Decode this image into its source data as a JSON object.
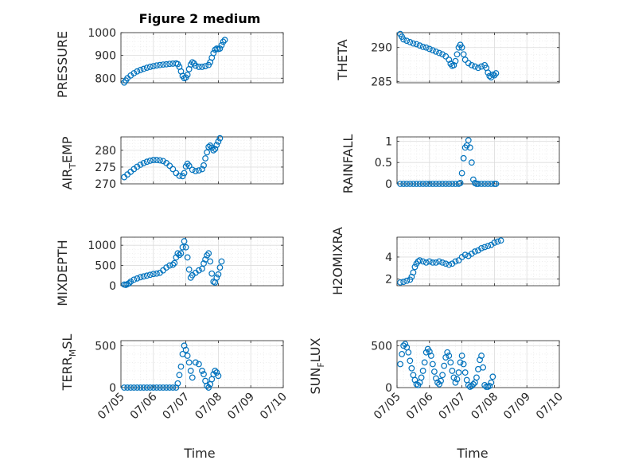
{
  "figure": {
    "title": "Figure 2 medium"
  },
  "colors": {
    "marker": "#0072BD"
  },
  "x_ticks": [
    "07/05",
    "07/06",
    "07/07",
    "07/08",
    "07/09",
    "07/10"
  ],
  "x_domain_days": [
    5,
    10
  ],
  "chart_data": [
    {
      "type": "scatter",
      "ylabel": "PRESSURE",
      "ylim": [
        780,
        1000
      ],
      "yticks": [
        800,
        900,
        1000
      ],
      "grid": true,
      "minor_grid": true,
      "points": [
        [
          5.1,
          781
        ],
        [
          5.15,
          790
        ],
        [
          5.2,
          800
        ],
        [
          5.3,
          812
        ],
        [
          5.4,
          822
        ],
        [
          5.5,
          830
        ],
        [
          5.6,
          836
        ],
        [
          5.7,
          841
        ],
        [
          5.8,
          846
        ],
        [
          5.9,
          850
        ],
        [
          6.0,
          853
        ],
        [
          6.1,
          856
        ],
        [
          6.2,
          858
        ],
        [
          6.3,
          860
        ],
        [
          6.4,
          861
        ],
        [
          6.5,
          863
        ],
        [
          6.6,
          864
        ],
        [
          6.7,
          865
        ],
        [
          6.75,
          862
        ],
        [
          6.8,
          850
        ],
        [
          6.85,
          830
        ],
        [
          6.9,
          810
        ],
        [
          6.95,
          800
        ],
        [
          7.0,
          803
        ],
        [
          7.05,
          815
        ],
        [
          7.1,
          840
        ],
        [
          7.15,
          860
        ],
        [
          7.2,
          870
        ],
        [
          7.25,
          865
        ],
        [
          7.3,
          855
        ],
        [
          7.4,
          850
        ],
        [
          7.5,
          850
        ],
        [
          7.6,
          853
        ],
        [
          7.7,
          858
        ],
        [
          7.75,
          870
        ],
        [
          7.8,
          890
        ],
        [
          7.85,
          910
        ],
        [
          7.9,
          925
        ],
        [
          7.95,
          930
        ],
        [
          8.0,
          928
        ],
        [
          8.05,
          930
        ],
        [
          8.1,
          945
        ],
        [
          8.15,
          960
        ],
        [
          8.2,
          968
        ]
      ]
    },
    {
      "type": "scatter",
      "ylabel": "THETA",
      "ylim": [
        284.8,
        292.2
      ],
      "yticks": [
        285,
        290
      ],
      "grid": true,
      "minor_grid": true,
      "points": [
        [
          5.1,
          292.0
        ],
        [
          5.15,
          291.6
        ],
        [
          5.2,
          291.2
        ],
        [
          5.3,
          291.0
        ],
        [
          5.4,
          290.8
        ],
        [
          5.5,
          290.6
        ],
        [
          5.6,
          290.5
        ],
        [
          5.7,
          290.3
        ],
        [
          5.8,
          290.1
        ],
        [
          5.9,
          290.0
        ],
        [
          6.0,
          289.8
        ],
        [
          6.1,
          289.6
        ],
        [
          6.2,
          289.4
        ],
        [
          6.3,
          289.2
        ],
        [
          6.4,
          289.0
        ],
        [
          6.5,
          288.7
        ],
        [
          6.6,
          288.2
        ],
        [
          6.65,
          287.6
        ],
        [
          6.7,
          287.3
        ],
        [
          6.75,
          287.4
        ],
        [
          6.8,
          288.0
        ],
        [
          6.85,
          289.0
        ],
        [
          6.9,
          290.0
        ],
        [
          6.95,
          290.4
        ],
        [
          7.0,
          290.0
        ],
        [
          7.05,
          289.0
        ],
        [
          7.1,
          288.2
        ],
        [
          7.2,
          287.7
        ],
        [
          7.3,
          287.4
        ],
        [
          7.4,
          287.2
        ],
        [
          7.5,
          287.0
        ],
        [
          7.6,
          287.2
        ],
        [
          7.7,
          287.4
        ],
        [
          7.75,
          287.0
        ],
        [
          7.8,
          286.3
        ],
        [
          7.85,
          285.8
        ],
        [
          7.9,
          285.6
        ],
        [
          7.95,
          286.0
        ],
        [
          8.0,
          285.9
        ],
        [
          8.05,
          286.2
        ]
      ]
    },
    {
      "type": "scatter",
      "ylabel": "AIR_TEMP",
      "ylim": [
        270,
        284
      ],
      "yticks": [
        270,
        275,
        280
      ],
      "grid": true,
      "minor_grid": true,
      "points": [
        [
          5.1,
          272.0
        ],
        [
          5.2,
          272.8
        ],
        [
          5.3,
          273.6
        ],
        [
          5.4,
          274.4
        ],
        [
          5.5,
          275.1
        ],
        [
          5.6,
          275.7
        ],
        [
          5.7,
          276.2
        ],
        [
          5.8,
          276.6
        ],
        [
          5.9,
          276.9
        ],
        [
          6.0,
          277.1
        ],
        [
          6.1,
          277.1
        ],
        [
          6.2,
          277.0
        ],
        [
          6.3,
          276.8
        ],
        [
          6.4,
          276.2
        ],
        [
          6.5,
          275.4
        ],
        [
          6.6,
          274.4
        ],
        [
          6.7,
          273.2
        ],
        [
          6.8,
          272.4
        ],
        [
          6.9,
          272.3
        ],
        [
          6.95,
          273.2
        ],
        [
          7.0,
          275.2
        ],
        [
          7.05,
          276.0
        ],
        [
          7.1,
          275.4
        ],
        [
          7.2,
          274.2
        ],
        [
          7.3,
          273.8
        ],
        [
          7.4,
          274.0
        ],
        [
          7.5,
          274.4
        ],
        [
          7.55,
          275.5
        ],
        [
          7.6,
          277.6
        ],
        [
          7.65,
          279.4
        ],
        [
          7.7,
          281.0
        ],
        [
          7.75,
          281.4
        ],
        [
          7.8,
          280.8
        ],
        [
          7.85,
          280.0
        ],
        [
          7.9,
          280.4
        ],
        [
          7.95,
          281.6
        ],
        [
          8.0,
          282.6
        ],
        [
          8.05,
          283.6
        ]
      ]
    },
    {
      "type": "scatter",
      "ylabel": "RAINFALL",
      "ylim": [
        0,
        1.1
      ],
      "yticks": [
        0,
        0.5,
        1
      ],
      "grid": true,
      "minor_grid": true,
      "points": [
        [
          5.1,
          0
        ],
        [
          5.2,
          0
        ],
        [
          5.3,
          0
        ],
        [
          5.4,
          0
        ],
        [
          5.5,
          0
        ],
        [
          5.6,
          0
        ],
        [
          5.7,
          0
        ],
        [
          5.8,
          0
        ],
        [
          5.9,
          0
        ],
        [
          6.0,
          0
        ],
        [
          6.1,
          0
        ],
        [
          6.2,
          0
        ],
        [
          6.3,
          0
        ],
        [
          6.4,
          0
        ],
        [
          6.5,
          0
        ],
        [
          6.6,
          0
        ],
        [
          6.7,
          0
        ],
        [
          6.8,
          0
        ],
        [
          6.9,
          0
        ],
        [
          6.95,
          0.02
        ],
        [
          7.0,
          0.25
        ],
        [
          7.05,
          0.6
        ],
        [
          7.1,
          0.85
        ],
        [
          7.15,
          0.9
        ],
        [
          7.2,
          1.02
        ],
        [
          7.25,
          0.85
        ],
        [
          7.3,
          0.5
        ],
        [
          7.35,
          0.1
        ],
        [
          7.4,
          0.02
        ],
        [
          7.45,
          0
        ],
        [
          7.5,
          0
        ],
        [
          7.6,
          0
        ],
        [
          7.7,
          0
        ],
        [
          7.8,
          0
        ],
        [
          7.9,
          0
        ],
        [
          8.0,
          0
        ],
        [
          8.05,
          0
        ]
      ]
    },
    {
      "type": "scatter",
      "ylabel": "MIXDEPTH",
      "ylim": [
        0,
        1200
      ],
      "yticks": [
        0,
        500,
        1000
      ],
      "grid": true,
      "minor_grid": true,
      "points": [
        [
          5.1,
          30
        ],
        [
          5.15,
          20
        ],
        [
          5.2,
          40
        ],
        [
          5.25,
          60
        ],
        [
          5.3,
          100
        ],
        [
          5.4,
          150
        ],
        [
          5.5,
          180
        ],
        [
          5.6,
          210
        ],
        [
          5.7,
          230
        ],
        [
          5.8,
          250
        ],
        [
          5.9,
          270
        ],
        [
          6.0,
          290
        ],
        [
          6.1,
          300
        ],
        [
          6.2,
          320
        ],
        [
          6.3,
          380
        ],
        [
          6.4,
          450
        ],
        [
          6.5,
          500
        ],
        [
          6.6,
          520
        ],
        [
          6.65,
          560
        ],
        [
          6.7,
          700
        ],
        [
          6.75,
          800
        ],
        [
          6.8,
          760
        ],
        [
          6.85,
          800
        ],
        [
          6.9,
          950
        ],
        [
          6.95,
          1100
        ],
        [
          7.0,
          950
        ],
        [
          7.05,
          700
        ],
        [
          7.1,
          400
        ],
        [
          7.15,
          200
        ],
        [
          7.2,
          260
        ],
        [
          7.3,
          320
        ],
        [
          7.4,
          380
        ],
        [
          7.5,
          420
        ],
        [
          7.55,
          550
        ],
        [
          7.6,
          650
        ],
        [
          7.65,
          750
        ],
        [
          7.7,
          800
        ],
        [
          7.75,
          600
        ],
        [
          7.8,
          300
        ],
        [
          7.85,
          100
        ],
        [
          7.9,
          80
        ],
        [
          7.95,
          200
        ],
        [
          8.0,
          280
        ],
        [
          8.05,
          450
        ],
        [
          8.1,
          600
        ]
      ]
    },
    {
      "type": "scatter",
      "ylabel": "H2OMIXRA",
      "ylim": [
        1.4,
        5.8
      ],
      "yticks": [
        2,
        4
      ],
      "grid": true,
      "minor_grid": true,
      "points": [
        [
          5.1,
          1.7
        ],
        [
          5.2,
          1.75
        ],
        [
          5.3,
          1.85
        ],
        [
          5.4,
          1.95
        ],
        [
          5.45,
          2.2
        ],
        [
          5.5,
          2.6
        ],
        [
          5.55,
          3.1
        ],
        [
          5.6,
          3.4
        ],
        [
          5.65,
          3.6
        ],
        [
          5.7,
          3.7
        ],
        [
          5.8,
          3.6
        ],
        [
          5.9,
          3.5
        ],
        [
          6.0,
          3.6
        ],
        [
          6.1,
          3.5
        ],
        [
          6.2,
          3.5
        ],
        [
          6.3,
          3.6
        ],
        [
          6.4,
          3.5
        ],
        [
          6.5,
          3.4
        ],
        [
          6.6,
          3.3
        ],
        [
          6.7,
          3.4
        ],
        [
          6.8,
          3.6
        ],
        [
          6.9,
          3.7
        ],
        [
          7.0,
          4.0
        ],
        [
          7.1,
          4.2
        ],
        [
          7.2,
          4.1
        ],
        [
          7.3,
          4.3
        ],
        [
          7.4,
          4.5
        ],
        [
          7.5,
          4.6
        ],
        [
          7.6,
          4.8
        ],
        [
          7.7,
          4.9
        ],
        [
          7.8,
          5.0
        ],
        [
          7.9,
          5.1
        ],
        [
          8.0,
          5.3
        ],
        [
          8.1,
          5.4
        ],
        [
          8.2,
          5.5
        ]
      ]
    },
    {
      "type": "scatter",
      "ylabel": "TERR_MSL",
      "ylim": [
        0,
        560
      ],
      "yticks": [
        0,
        500
      ],
      "grid": true,
      "minor_grid": true,
      "points": [
        [
          5.1,
          0
        ],
        [
          5.2,
          0
        ],
        [
          5.3,
          0
        ],
        [
          5.4,
          0
        ],
        [
          5.5,
          0
        ],
        [
          5.6,
          0
        ],
        [
          5.7,
          0
        ],
        [
          5.8,
          0
        ],
        [
          5.9,
          0
        ],
        [
          6.0,
          0
        ],
        [
          6.1,
          0
        ],
        [
          6.2,
          0
        ],
        [
          6.3,
          0
        ],
        [
          6.4,
          0
        ],
        [
          6.5,
          0
        ],
        [
          6.6,
          0
        ],
        [
          6.7,
          0
        ],
        [
          6.75,
          50
        ],
        [
          6.8,
          150
        ],
        [
          6.85,
          250
        ],
        [
          6.9,
          400
        ],
        [
          6.95,
          500
        ],
        [
          7.0,
          450
        ],
        [
          7.05,
          380
        ],
        [
          7.1,
          300
        ],
        [
          7.15,
          200
        ],
        [
          7.2,
          120
        ],
        [
          7.3,
          300
        ],
        [
          7.4,
          280
        ],
        [
          7.5,
          200
        ],
        [
          7.55,
          160
        ],
        [
          7.6,
          80
        ],
        [
          7.65,
          20
        ],
        [
          7.7,
          0
        ],
        [
          7.75,
          40
        ],
        [
          7.8,
          100
        ],
        [
          7.85,
          160
        ],
        [
          7.9,
          200
        ],
        [
          7.95,
          180
        ],
        [
          8.0,
          140
        ]
      ]
    },
    {
      "type": "scatter",
      "ylabel": "SUN_FLUX",
      "ylim": [
        0,
        560
      ],
      "yticks": [
        0,
        500
      ],
      "grid": true,
      "minor_grid": true,
      "points": [
        [
          5.1,
          280
        ],
        [
          5.15,
          400
        ],
        [
          5.2,
          500
        ],
        [
          5.25,
          520
        ],
        [
          5.3,
          480
        ],
        [
          5.35,
          420
        ],
        [
          5.4,
          320
        ],
        [
          5.45,
          230
        ],
        [
          5.5,
          150
        ],
        [
          5.55,
          90
        ],
        [
          5.6,
          40
        ],
        [
          5.65,
          30
        ],
        [
          5.7,
          60
        ],
        [
          5.75,
          120
        ],
        [
          5.8,
          200
        ],
        [
          5.85,
          300
        ],
        [
          5.9,
          420
        ],
        [
          5.95,
          460
        ],
        [
          6.0,
          430
        ],
        [
          6.05,
          380
        ],
        [
          6.1,
          280
        ],
        [
          6.15,
          190
        ],
        [
          6.2,
          110
        ],
        [
          6.25,
          60
        ],
        [
          6.3,
          40
        ],
        [
          6.35,
          80
        ],
        [
          6.4,
          150
        ],
        [
          6.45,
          260
        ],
        [
          6.5,
          360
        ],
        [
          6.55,
          420
        ],
        [
          6.6,
          380
        ],
        [
          6.65,
          300
        ],
        [
          6.7,
          200
        ],
        [
          6.75,
          120
        ],
        [
          6.8,
          60
        ],
        [
          6.85,
          100
        ],
        [
          6.9,
          180
        ],
        [
          6.95,
          300
        ],
        [
          7.0,
          380
        ],
        [
          7.05,
          280
        ],
        [
          7.1,
          180
        ],
        [
          7.15,
          90
        ],
        [
          7.2,
          30
        ],
        [
          7.25,
          10
        ],
        [
          7.3,
          20
        ],
        [
          7.35,
          40
        ],
        [
          7.4,
          60
        ],
        [
          7.45,
          120
        ],
        [
          7.5,
          220
        ],
        [
          7.55,
          330
        ],
        [
          7.6,
          380
        ],
        [
          7.65,
          240
        ],
        [
          7.7,
          30
        ],
        [
          7.75,
          10
        ],
        [
          7.8,
          10
        ],
        [
          7.85,
          20
        ],
        [
          7.9,
          60
        ],
        [
          7.95,
          130
        ]
      ]
    }
  ],
  "x_axis_label": "Time",
  "axis_labels": {
    "pressure": "PRESSURE",
    "theta": "THETA",
    "air_main": "AIR",
    "air_sub": "T",
    "air_end": "EMP",
    "rainfall": "RAINFALL",
    "mixdepth": "MIXDEPTH",
    "h2o": "H2OMIXRA",
    "terr_main": "TERR",
    "terr_sub": "M",
    "terr_end": "SL",
    "sun_main": "SUN",
    "sun_sub": "F",
    "sun_end": "LUX"
  }
}
